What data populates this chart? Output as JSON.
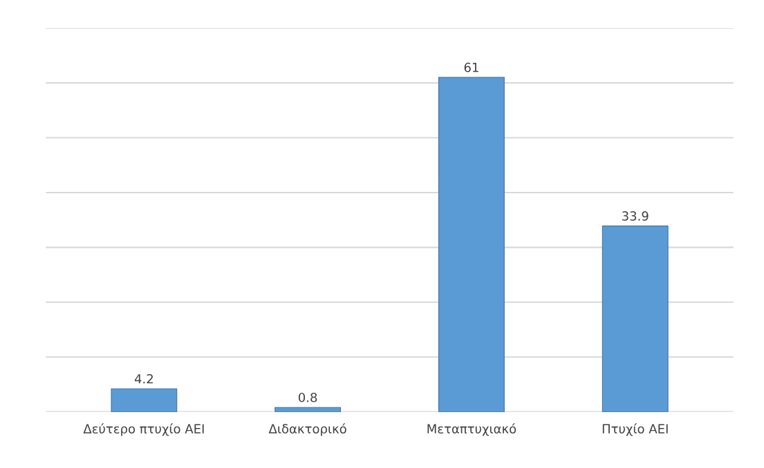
{
  "chart_data": {
    "type": "bar",
    "categories": [
      "Δεύτερο πτυχίο ΑΕΙ",
      "Διδακτορικό",
      "Μεταπτυχιακό",
      "Πτυχίο ΑΕΙ"
    ],
    "values": [
      4.2,
      0.8,
      61,
      33.9
    ],
    "color": "#5b9bd5",
    "ylim": [
      0,
      70
    ],
    "yticks": [
      {
        "value": 0,
        "label": null
      },
      {
        "value": 10,
        "label": null
      },
      {
        "value": 20,
        "label": null
      },
      {
        "value": 30,
        "label": null
      },
      {
        "value": 40,
        "label": null
      },
      {
        "value": 50,
        "label": null
      },
      {
        "value": 60,
        "label": null
      },
      {
        "value": 70,
        "label": null
      }
    ],
    "tick_labels": "x",
    "grid": "y",
    "data_labels": true
  }
}
